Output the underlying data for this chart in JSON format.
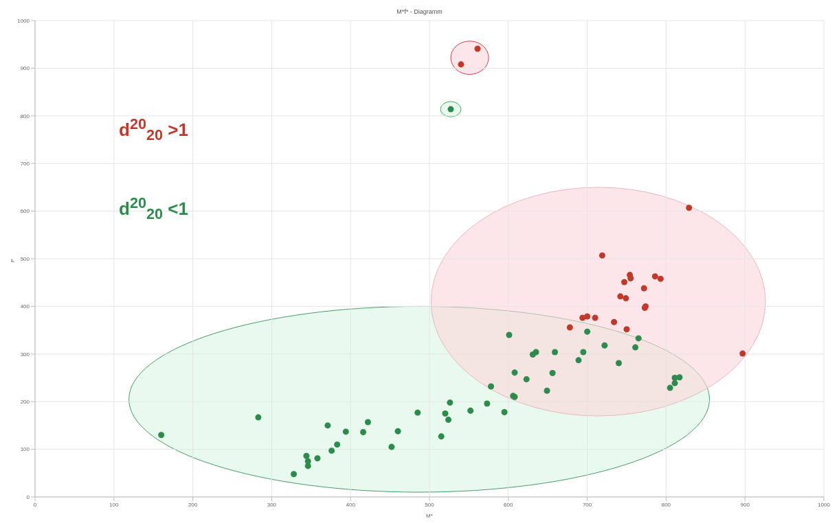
{
  "chart_data": {
    "type": "scatter",
    "title": "M*f* - Diagramm",
    "xlabel": "M*",
    "ylabel": "f*",
    "xlim": [
      0,
      1000
    ],
    "xticks": [
      0,
      100,
      200,
      300,
      400,
      500,
      600,
      700,
      800,
      900,
      1000
    ],
    "ylim": [
      0,
      1000
    ],
    "yticks": [
      0,
      100,
      200,
      300,
      400,
      500,
      600,
      700,
      800,
      900,
      1000
    ],
    "grid": true,
    "marker": "circle",
    "legend": false,
    "annotations": [
      "d$^{20}$$_{20}$ >1",
      "d$^{20}$$_{20}$ <1"
    ],
    "series": [
      {
        "color": "#c0392b",
        "x": [
          561,
          540,
          829,
          719,
          754,
          755,
          747,
          786,
          793,
          772,
          742,
          749,
          774,
          773,
          694,
          700,
          710,
          734,
          750,
          678,
          897
        ],
        "values": [
          941,
          908,
          607,
          507,
          466,
          459,
          451,
          463,
          458,
          438,
          421,
          417,
          400,
          397,
          376,
          379,
          376,
          367,
          352,
          356,
          301
        ]
      },
      {
        "color": "#2e8b4e",
        "x": [
          527,
          765,
          700,
          601,
          761,
          722,
          631,
          635,
          659,
          695,
          689,
          740,
          608,
          656,
          623,
          811,
          817,
          811,
          805,
          649,
          578,
          606,
          608,
          526,
          573,
          552,
          520,
          595,
          524,
          515,
          160,
          283,
          371,
          422,
          394,
          416,
          460,
          485,
          383,
          376,
          452,
          344,
          346,
          346,
          358,
          328
        ],
        "values": [
          814,
          333,
          347,
          340,
          314,
          318,
          299,
          304,
          304,
          304,
          287,
          281,
          261,
          260,
          247,
          250,
          251,
          239,
          229,
          223,
          232,
          212,
          210,
          198,
          196,
          181,
          175,
          178,
          162,
          127,
          130,
          167,
          150,
          157,
          137,
          136,
          138,
          177,
          110,
          97,
          105,
          86,
          75,
          65,
          81,
          48
        ]
      }
    ]
  }
}
